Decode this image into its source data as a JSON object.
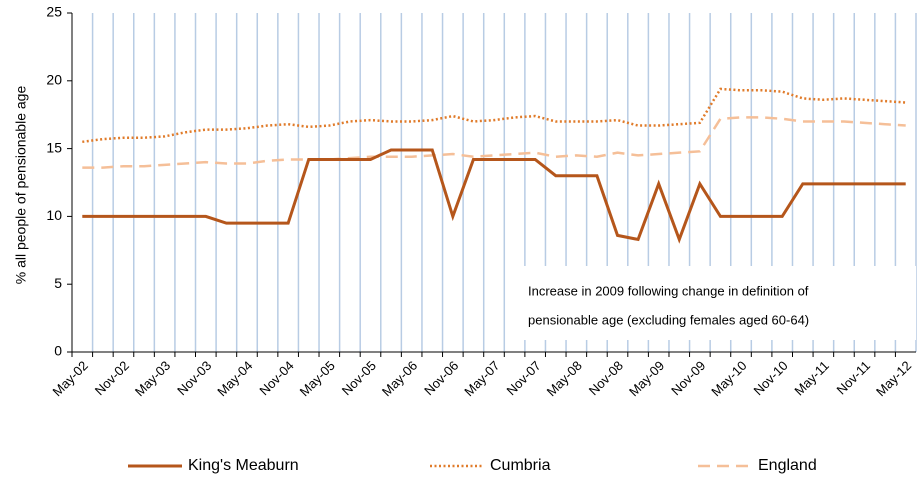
{
  "chart_data": {
    "type": "line",
    "y_label": "% all people of pensionable age",
    "annotation": [
      "Increase in 2009 following change in definition of",
      "pensionable age (excluding females aged 60-64)"
    ],
    "categories": [
      "May-02",
      null,
      "Nov-02",
      null,
      "May-03",
      null,
      "Nov-03",
      null,
      "May-04",
      null,
      "Nov-04",
      null,
      "May-05",
      null,
      "Nov-05",
      null,
      "May-06",
      null,
      "Nov-06",
      null,
      "May-07",
      null,
      "Nov-07",
      null,
      "May-08",
      null,
      "Nov-08",
      null,
      "May-09",
      null,
      "Nov-09",
      null,
      "May-10",
      null,
      "Nov-10",
      null,
      "May-11",
      null,
      "Nov-11",
      null,
      "May-12"
    ],
    "series": [
      {
        "name": "King's Meaburn",
        "color": "#b5561b",
        "style": "solid",
        "values": [
          10,
          10,
          10,
          10,
          10,
          10,
          10,
          9.5,
          9.5,
          9.5,
          9.5,
          14.2,
          14.2,
          14.2,
          14.2,
          14.9,
          14.9,
          14.9,
          10,
          14.2,
          14.2,
          14.2,
          14.2,
          13,
          13,
          13,
          8.6,
          8.3,
          12.4,
          8.3,
          12.4,
          10,
          10,
          10,
          10,
          12.4,
          12.4,
          12.4,
          12.4,
          12.4,
          12.4
        ]
      },
      {
        "name": "Cumbria",
        "color": "#e07b2a",
        "style": "dotted",
        "values": [
          15.5,
          15.7,
          15.8,
          15.8,
          15.9,
          16.2,
          16.4,
          16.4,
          16.5,
          16.7,
          16.8,
          16.6,
          16.7,
          17.0,
          17.1,
          17.0,
          17.0,
          17.1,
          17.4,
          17.0,
          17.1,
          17.3,
          17.4,
          17.0,
          17.0,
          17.0,
          17.1,
          16.7,
          16.7,
          16.8,
          16.9,
          19.4,
          19.3,
          19.3,
          19.2,
          18.7,
          18.6,
          18.7,
          18.6,
          18.5,
          18.4
        ]
      },
      {
        "name": "England",
        "color": "#f5bf98",
        "style": "dashed",
        "values": [
          13.6,
          13.6,
          13.7,
          13.7,
          13.8,
          13.9,
          14.0,
          13.9,
          13.9,
          14.1,
          14.2,
          14.2,
          14.2,
          14.3,
          14.4,
          14.4,
          14.4,
          14.5,
          14.6,
          14.4,
          14.5,
          14.6,
          14.7,
          14.4,
          14.5,
          14.4,
          14.7,
          14.5,
          14.6,
          14.7,
          14.8,
          17.2,
          17.3,
          17.3,
          17.2,
          17.0,
          17.0,
          17.0,
          16.9,
          16.8,
          16.7
        ]
      }
    ],
    "ylim": [
      0,
      25
    ],
    "yticks": [
      0,
      5,
      10,
      15,
      20,
      25
    ],
    "grid_x": true,
    "legend": "bottom"
  }
}
